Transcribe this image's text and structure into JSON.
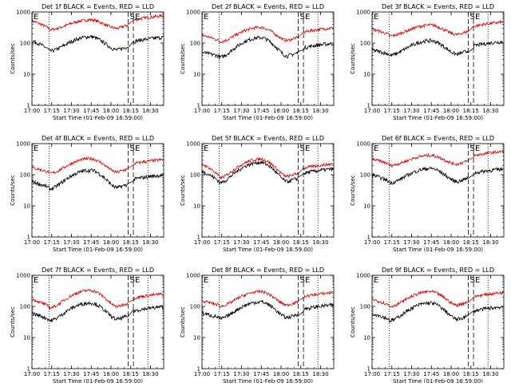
{
  "figure": {
    "panels": [
      {
        "title": "Det 1f BLACK = Events, RED = LLD",
        "black_start": 120,
        "black_min": 55,
        "black_peak": 160,
        "red_start": 520,
        "red_min": 270,
        "red_peak": 560
      },
      {
        "title": "Det 2f BLACK = Events, RED = LLD",
        "black_start": 50,
        "black_min": 35,
        "black_peak": 150,
        "red_start": 180,
        "red_min": 110,
        "red_peak": 320
      },
      {
        "title": "Det 3f BLACK = Events, RED = LLD",
        "black_start": 60,
        "black_min": 40,
        "black_peak": 120,
        "red_start": 280,
        "red_min": 170,
        "red_peak": 380
      },
      {
        "title": "Det 4f BLACK = Events, RED = LLD",
        "black_start": 60,
        "black_min": 35,
        "black_peak": 140,
        "red_start": 170,
        "red_min": 110,
        "red_peak": 330
      },
      {
        "title": "Det 5f BLACK = Events, RED = LLD",
        "black_start": 130,
        "black_min": 55,
        "black_peak": 250,
        "red_start": 220,
        "red_min": 80,
        "red_peak": 320
      },
      {
        "title": "Det 6f BLACK = Events, RED = LLD",
        "black_start": 100,
        "black_min": 55,
        "black_peak": 160,
        "red_start": 320,
        "red_min": 200,
        "red_peak": 420
      },
      {
        "title": "Det 7f BLACK = Events, RED = LLD",
        "black_start": 60,
        "black_min": 35,
        "black_peak": 130,
        "red_start": 170,
        "red_min": 90,
        "red_peak": 330
      },
      {
        "title": "Det 8f BLACK = Events, RED = LLD",
        "black_start": 60,
        "black_min": 40,
        "black_peak": 140,
        "red_start": 150,
        "red_min": 100,
        "red_peak": 300
      },
      {
        "title": "Det 9f BLACK = Events, RED = LLD",
        "black_start": 60,
        "black_min": 35,
        "black_peak": 130,
        "red_start": 170,
        "red_min": 100,
        "red_peak": 300
      }
    ],
    "colors": {
      "events": "#000000",
      "lld": "#dd0000"
    },
    "markers": {
      "left": "E",
      "right_s": "S",
      "right_e": "E"
    }
  },
  "chart_data": {
    "type": "line",
    "xlabel": "Start Time (01-Feb-09 16:59:00)",
    "ylabel": "Counts/sec",
    "yscale": "log",
    "ylim": [
      1,
      1000
    ],
    "yticks": [
      "1",
      "10",
      "100",
      "1000"
    ],
    "xlim": [
      "17:00",
      "18:40"
    ],
    "xticks": [
      "17:00",
      "17:15",
      "17:30",
      "17:45",
      "18:00",
      "18:15",
      "18:30"
    ],
    "vlines": {
      "dotted": "17:13",
      "dashed_1": "18:13",
      "dashed_2": "18:17",
      "dotted_2": "18:28"
    },
    "grid": false
  }
}
